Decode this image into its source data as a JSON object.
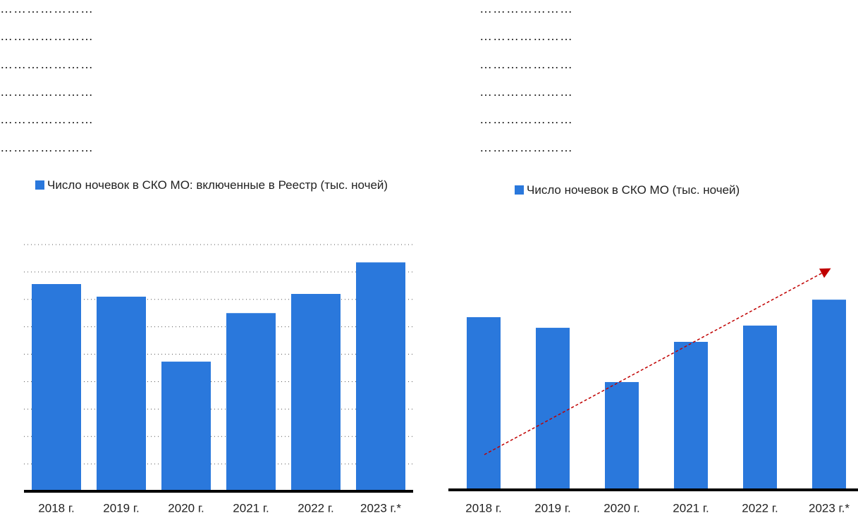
{
  "placeholders": {
    "left": [
      "…………………",
      "…………………",
      "…………………",
      "…………………",
      "…………………",
      "…………………"
    ],
    "right": [
      "…………………",
      "…………………",
      "…………………",
      "…………………",
      "…………………",
      "…………………"
    ]
  },
  "chart_data": [
    {
      "type": "bar",
      "categories": [
        "2018 г.",
        "2019 г.",
        "2020 г.",
        "2021 г.",
        "2022 г.",
        "2023 г.*"
      ],
      "series": [
        {
          "name": "Число ночевок в СКО МО: включенные в Реестр (тыс. ночей)",
          "color": "#2a78dc",
          "values": [
            7.56,
            7.1,
            4.73,
            6.5,
            7.2,
            8.35
          ]
        }
      ],
      "ylim": [
        0,
        9
      ],
      "yticks": [
        1,
        2,
        3,
        4,
        5,
        6,
        7,
        8,
        9
      ],
      "grid": true
    },
    {
      "type": "bar",
      "categories": [
        "2018 г.",
        "2019 г.",
        "2020 г.",
        "2021 г.",
        "2022 г.",
        "2023 г.*"
      ],
      "series": [
        {
          "name": "Число ночевок в СКО МО (тыс. ночей)",
          "color": "#2a78dc",
          "values": [
            7.0,
            6.57,
            4.37,
            6.0,
            6.66,
            7.71
          ]
        }
      ],
      "ylim": [
        0,
        10
      ],
      "grid": false
    }
  ]
}
